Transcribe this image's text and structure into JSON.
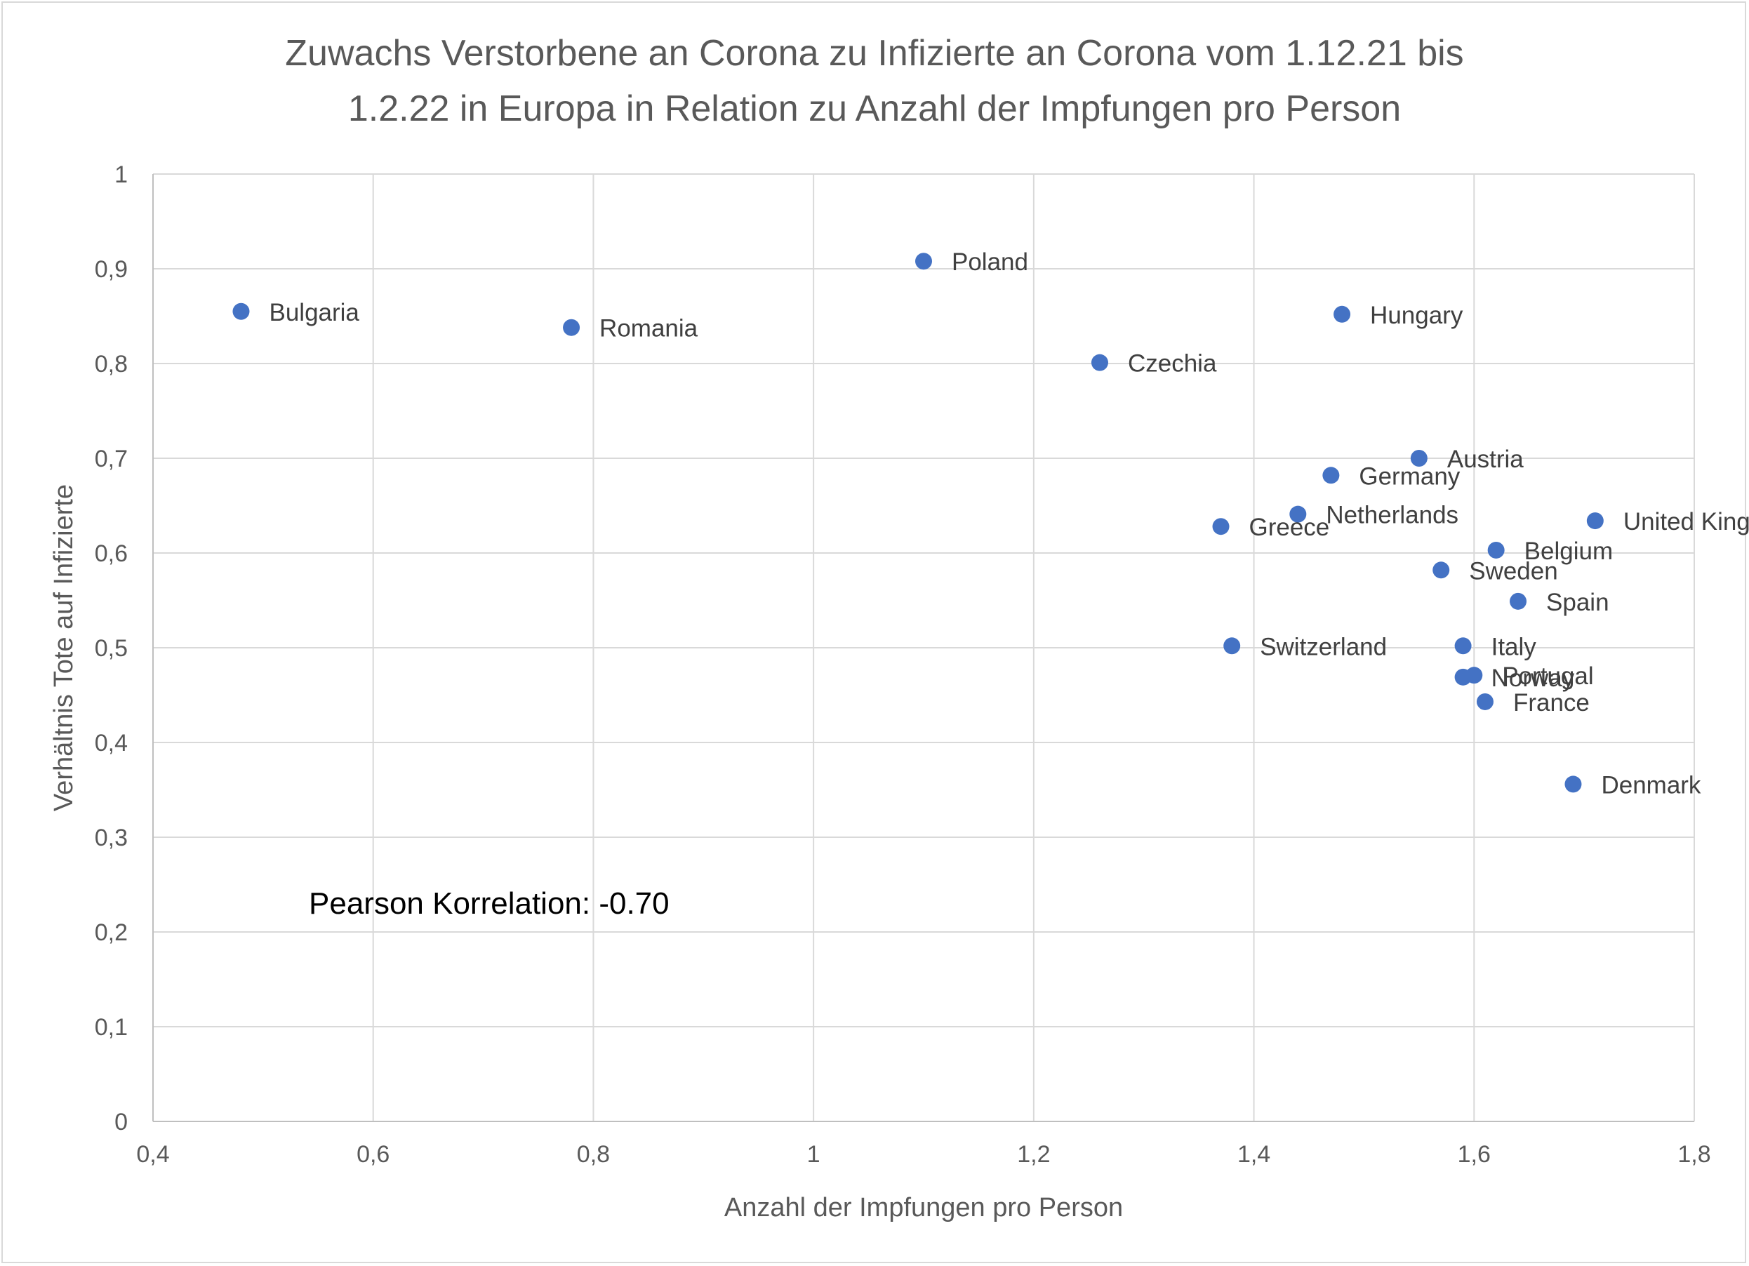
{
  "chart_data": {
    "type": "scatter",
    "title_lines": [
      "Zuwachs Verstorbene an Corona zu Infizierte an Corona vom 1.12.21 bis",
      "1.2.22 in Europa in Relation zu Anzahl der Impfungen pro Person"
    ],
    "xlabel": "Anzahl der Impfungen pro Person",
    "ylabel": "Verhältnis Tote auf Infizierte",
    "xlim": [
      0.4,
      1.8
    ],
    "ylim": [
      0,
      1
    ],
    "x_ticks": [
      "0,4",
      "0,6",
      "0,8",
      "1",
      "1,2",
      "1,4",
      "1,6",
      "1,8"
    ],
    "y_ticks": [
      "0",
      "0,1",
      "0,2",
      "0,3",
      "0,4",
      "0,5",
      "0,6",
      "0,7",
      "0,8",
      "0,9",
      "1"
    ],
    "grid": true,
    "marker_color": "#4472C4",
    "annotation": "Pearson Korrelation: -0.70",
    "points": [
      {
        "label": "Bulgaria",
        "x": 0.48,
        "y": 0.855
      },
      {
        "label": "Romania",
        "x": 0.78,
        "y": 0.838
      },
      {
        "label": "Poland",
        "x": 1.1,
        "y": 0.908
      },
      {
        "label": "Czechia",
        "x": 1.26,
        "y": 0.801
      },
      {
        "label": "Hungary",
        "x": 1.48,
        "y": 0.852
      },
      {
        "label": "Austria",
        "x": 1.55,
        "y": 0.7
      },
      {
        "label": "Germany",
        "x": 1.47,
        "y": 0.682
      },
      {
        "label": "Netherlands",
        "x": 1.44,
        "y": 0.641
      },
      {
        "label": "Greece",
        "x": 1.37,
        "y": 0.628
      },
      {
        "label": "United Kingdom",
        "x": 1.71,
        "y": 0.634
      },
      {
        "label": "Belgium",
        "x": 1.62,
        "y": 0.603
      },
      {
        "label": "Sweden",
        "x": 1.57,
        "y": 0.582
      },
      {
        "label": "Spain",
        "x": 1.64,
        "y": 0.549
      },
      {
        "label": "Switzerland",
        "x": 1.38,
        "y": 0.502
      },
      {
        "label": "Italy",
        "x": 1.59,
        "y": 0.502
      },
      {
        "label": "Portugal",
        "x": 1.6,
        "y": 0.471
      },
      {
        "label": "Norway",
        "x": 1.59,
        "y": 0.469
      },
      {
        "label": "France",
        "x": 1.61,
        "y": 0.443
      },
      {
        "label": "Denmark",
        "x": 1.69,
        "y": 0.356
      }
    ]
  }
}
